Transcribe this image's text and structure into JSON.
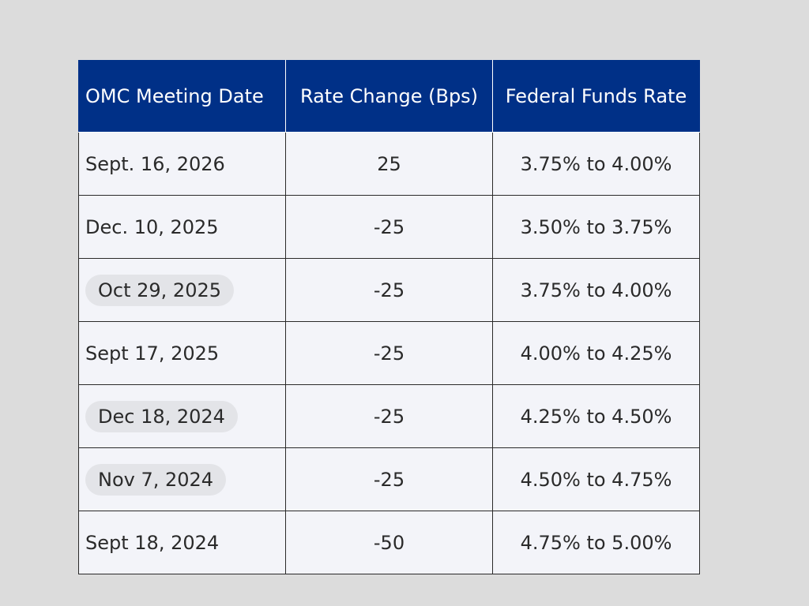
{
  "table": {
    "headers": {
      "date": "OMC Meeting Date",
      "change": "Rate Change (Bps)",
      "rate": "Federal Funds Rate"
    },
    "rows": [
      {
        "date": "Sept. 16, 2026",
        "change": "25",
        "rate": "3.75% to 4.00%",
        "highlight": false
      },
      {
        "date": "Dec. 10, 2025",
        "change": "-25",
        "rate": "3.50% to 3.75%",
        "highlight": false
      },
      {
        "date": "Oct 29, 2025",
        "change": "-25",
        "rate": "3.75% to 4.00%",
        "highlight": true
      },
      {
        "date": "Sept 17, 2025",
        "change": "-25",
        "rate": "4.00% to 4.25%",
        "highlight": false
      },
      {
        "date": "Dec 18, 2024",
        "change": "-25",
        "rate": "4.25% to 4.50%",
        "highlight": true
      },
      {
        "date": "Nov 7, 2024",
        "change": "-25",
        "rate": "4.50% to 4.75%",
        "highlight": true
      },
      {
        "date": "Sept 18, 2024",
        "change": "-50",
        "rate": "4.75% to 5.00%",
        "highlight": false
      }
    ]
  },
  "colors": {
    "header_bg": "#003087",
    "header_text": "#ffffff",
    "cell_bg": "#f3f4f9",
    "chip_bg": "#e3e4e8",
    "page_bg": "#dcdcdc"
  }
}
